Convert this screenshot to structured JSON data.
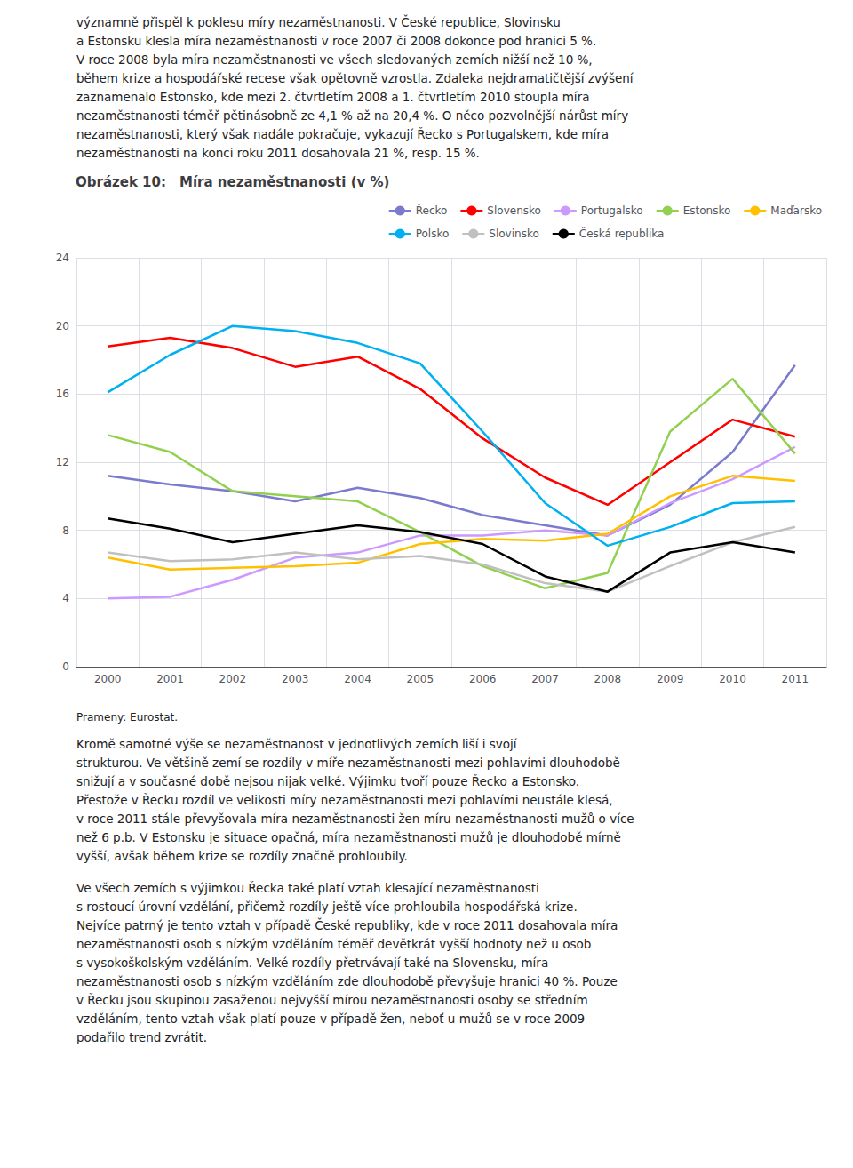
{
  "chart_data": {
    "type": "line",
    "title": "Obrázek 10: Míra nezaměstnanosti (v %)",
    "annotations": [
      "významně přispěl k poklesu míry nezaměstnanosti. V České republice, Slovinsku\na Estonsku klesla míra nezaměstnanosti v roce 2007 či 2008 dokonce pod hranici 5 %.\nV roce 2008 byla míra nezaměstnanosti ve všech sledovaných zemích nižší než 10 %,\nběhem krize a hospodářské recese však opětovně vzrostla. Zdaleka nejdramatičtější zvýšení\nzaznamenalo Estonsko, kde mezi 2. čtvrtletím 2008 a 1. čtvrtletím 2010 stoupla míra\nnezaměstnanosti téměř pětinásobně ze 4,1 % až na 20,4 %. O něco pozvolnější nárůst míry\nnezaměstnanosti, který však nadále pokračuje, vykazují Řecko s Portugalskem, kde míra\nnezaměstnanosti na konci roku 2011 dosahovala 21 %, resp. 15 %.",
      "Prameny: Eurostat.",
      "Kromě samotné výše se nezaměstnanost v jednotlivých zemích liší i svojí\nstrukturou. Ve většině zemí se rozdíly v míře nezaměstnanosti mezi pohlavími dlouhodobě\nsnižují a v současné době nejsou nijak velké. Výjimku tvoří pouze Řecko a Estonsko.\nPřestože v Řecku rozdíl ve velikosti míry nezaměstnanosti mezi pohlavími neustále klesá,\nv roce 2011 stále převyšovala míra nezaměstnanosti žen míru nezaměstnanosti mužů o více\nnež 6 p.b. V Estonsku je situace opačná, míra nezaměstnanosti mužů je dlouhodobě mírně\nvyšší, avšak během krize se rozdíly značně prohloubily.",
      "Ve všech zemích s výjimkou Řecka také platí vztah klesající nezaměstnanosti\ns rostoucí úrovní vzdělání, přičemž rozdíly ještě více prohloubila hospodářská krize.\nNejvíce patrný je tento vztah v případě České republiky, kde v roce 2011 dosahovala míra\nnezaměstnanosti osob s nízkým vzděláním téměř devětkrát vyšší hodnoty než u osob\ns vysokoškolským vzděláním. Velké rozdíly přetrvávají také na Slovensku, míra\nnezaměstnanosti osob s nízkým vzděláním zde dlouhodobě převyšuje hranici 40 %. Pouze\nv Řecku jsou skupinou zasaženou nejvyšší mírou nezaměstnanosti osoby se středním\nvzděláním, tento vztah však platí pouze v případě žen, neboť u mužů se v roce 2009\npodařilo trend zvrátit."
    ],
    "categories": [
      "2000",
      "2001",
      "2002",
      "2003",
      "2004",
      "2005",
      "2006",
      "2007",
      "2008",
      "2009",
      "2010",
      "2011"
    ],
    "series": [
      {
        "name": "Řecko",
        "color": "#7b7bcd",
        "values": [
          11.2,
          10.7,
          10.3,
          9.7,
          10.5,
          9.9,
          8.9,
          8.3,
          7.7,
          9.5,
          12.6,
          17.7
        ]
      },
      {
        "name": "Slovensko",
        "color": "#ff0000",
        "values": [
          18.8,
          19.3,
          18.7,
          17.6,
          18.2,
          16.3,
          13.4,
          11.1,
          9.5,
          12.0,
          14.5,
          13.5
        ]
      },
      {
        "name": "Portugalsko",
        "color": "#cc99ff",
        "values": [
          4.0,
          4.1,
          5.1,
          6.4,
          6.7,
          7.7,
          7.7,
          8.0,
          7.7,
          9.6,
          11.0,
          12.9
        ]
      },
      {
        "name": "Estonsko",
        "color": "#92d050",
        "values": [
          13.6,
          12.6,
          10.3,
          10.0,
          9.7,
          7.9,
          5.9,
          4.6,
          5.5,
          13.8,
          16.9,
          12.5
        ]
      },
      {
        "name": "Maďarsko",
        "color": "#ffc000",
        "values": [
          6.4,
          5.7,
          5.8,
          5.9,
          6.1,
          7.2,
          7.5,
          7.4,
          7.8,
          10.0,
          11.2,
          10.9
        ]
      },
      {
        "name": "Polsko",
        "color": "#00b0f0",
        "values": [
          16.1,
          18.3,
          20.0,
          19.7,
          19.0,
          17.8,
          13.8,
          9.6,
          7.1,
          8.2,
          9.6,
          9.7
        ]
      },
      {
        "name": "Slovinsko",
        "color": "#c0c0c0",
        "values": [
          6.7,
          6.2,
          6.3,
          6.7,
          6.3,
          6.5,
          6.0,
          4.9,
          4.4,
          5.9,
          7.3,
          8.2
        ]
      },
      {
        "name": "Česká republika",
        "color": "#000000",
        "values": [
          8.7,
          8.1,
          7.3,
          7.8,
          8.3,
          7.9,
          7.2,
          5.3,
          4.4,
          6.7,
          7.3,
          6.7
        ]
      }
    ],
    "ylim": [
      0,
      24
    ],
    "yticks": [
      0,
      4,
      8,
      12,
      16,
      20,
      24
    ],
    "grid": true,
    "legend": "upper right"
  }
}
